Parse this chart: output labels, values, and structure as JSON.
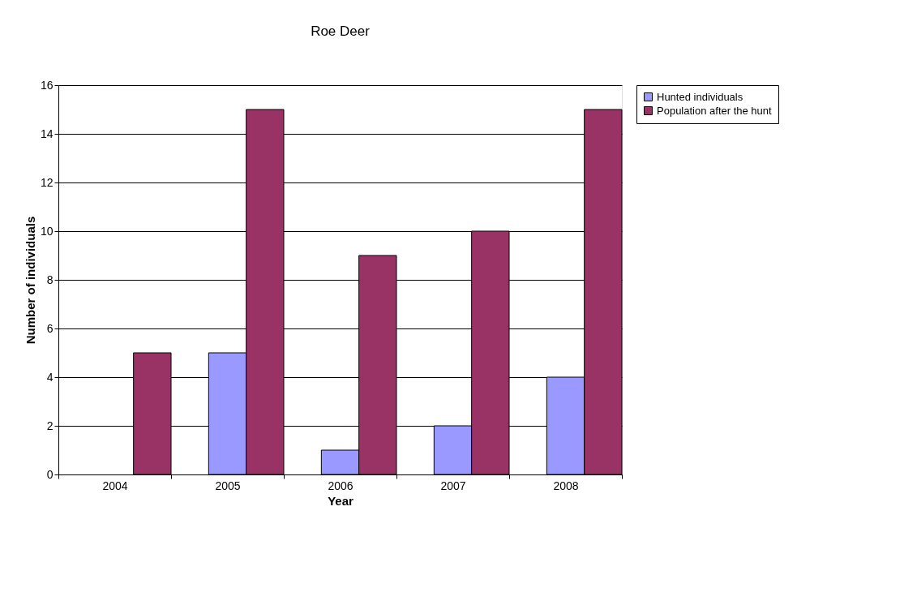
{
  "chart_data": {
    "type": "bar",
    "title": "Roe Deer",
    "xlabel": "Year",
    "ylabel": "Number of individuals",
    "categories": [
      "2004",
      "2005",
      "2006",
      "2007",
      "2008"
    ],
    "series": [
      {
        "name": "Hunted individuals",
        "color": "#9999ff",
        "values": [
          null,
          5,
          1,
          2,
          4
        ]
      },
      {
        "name": "Population after the hunt",
        "color": "#993366",
        "values": [
          5,
          15,
          9,
          10,
          15
        ]
      }
    ],
    "ylim": [
      0,
      16
    ],
    "yticks": [
      0,
      2,
      4,
      6,
      8,
      10,
      12,
      14,
      16
    ],
    "grid": "y",
    "legend": "right"
  }
}
